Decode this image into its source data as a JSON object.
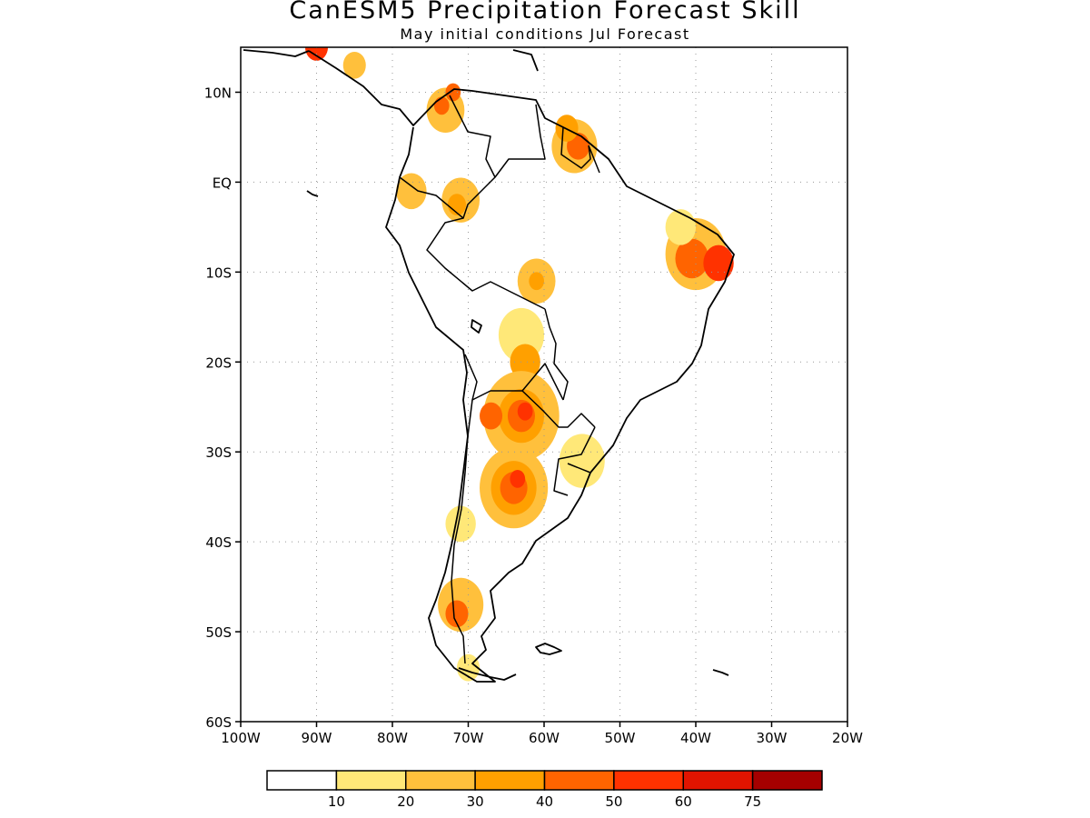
{
  "title": "CanESM5 Precipitation Forecast Skill",
  "subtitle": "May initial conditions  Jul Forecast",
  "map": {
    "lon_range": [
      -100,
      -20
    ],
    "lat_range": [
      -60,
      15
    ],
    "lat_ticks": [
      {
        "value": 10,
        "label": "10N"
      },
      {
        "value": 0,
        "label": "EQ"
      },
      {
        "value": -10,
        "label": "10S"
      },
      {
        "value": -20,
        "label": "20S"
      },
      {
        "value": -30,
        "label": "30S"
      },
      {
        "value": -40,
        "label": "40S"
      },
      {
        "value": -50,
        "label": "50S"
      },
      {
        "value": -60,
        "label": "60S"
      }
    ],
    "lon_ticks": [
      {
        "value": -100,
        "label": "100W"
      },
      {
        "value": -90,
        "label": "90W"
      },
      {
        "value": -80,
        "label": "80W"
      },
      {
        "value": -70,
        "label": "70W"
      },
      {
        "value": -60,
        "label": "60W"
      },
      {
        "value": -50,
        "label": "50W"
      },
      {
        "value": -40,
        "label": "40W"
      },
      {
        "value": -30,
        "label": "30W"
      },
      {
        "value": -20,
        "label": "20W"
      }
    ],
    "grid": "dotted"
  },
  "colorbar": {
    "colors": [
      "#ffffff",
      "#ffe878",
      "#ffc03c",
      "#ffa000",
      "#ff6400",
      "#ff3200",
      "#e11400",
      "#a50000"
    ],
    "labels": [
      "10",
      "20",
      "30",
      "40",
      "50",
      "60",
      "75"
    ]
  },
  "skill_regions": [
    {
      "lon": -73,
      "lat": 8,
      "r": 2.5,
      "level": 2
    },
    {
      "lon": -73.5,
      "lat": 8.5,
      "r": 1,
      "level": 4
    },
    {
      "lon": -72,
      "lat": 10,
      "r": 1,
      "level": 4
    },
    {
      "lon": -90,
      "lat": 15,
      "r": 1.5,
      "level": 5
    },
    {
      "lon": -85,
      "lat": 13,
      "r": 1.5,
      "level": 2
    },
    {
      "lon": -56,
      "lat": 4,
      "r": 3,
      "level": 2
    },
    {
      "lon": -55.5,
      "lat": 4,
      "r": 1.5,
      "level": 4
    },
    {
      "lon": -57,
      "lat": 6,
      "r": 1.5,
      "level": 3
    },
    {
      "lon": -77.5,
      "lat": -1,
      "r": 2,
      "level": 2
    },
    {
      "lon": -71,
      "lat": -2,
      "r": 2.5,
      "level": 2
    },
    {
      "lon": -71.5,
      "lat": -2.5,
      "r": 1.2,
      "level": 3
    },
    {
      "lon": -40,
      "lat": -8,
      "r": 4,
      "level": 2
    },
    {
      "lon": -40.5,
      "lat": -8.5,
      "r": 2.2,
      "level": 4
    },
    {
      "lon": -37,
      "lat": -9,
      "r": 2,
      "level": 5
    },
    {
      "lon": -42,
      "lat": -5,
      "r": 2,
      "level": 1
    },
    {
      "lon": -61,
      "lat": -11,
      "r": 2.5,
      "level": 2
    },
    {
      "lon": -61,
      "lat": -11,
      "r": 1,
      "level": 3
    },
    {
      "lon": -63,
      "lat": -17,
      "r": 3,
      "level": 1
    },
    {
      "lon": -62.5,
      "lat": -20,
      "r": 2,
      "level": 3
    },
    {
      "lon": -63,
      "lat": -26,
      "r": 5,
      "level": 2
    },
    {
      "lon": -63,
      "lat": -26,
      "r": 3,
      "level": 3
    },
    {
      "lon": -63,
      "lat": -26,
      "r": 1.8,
      "level": 4
    },
    {
      "lon": -62.5,
      "lat": -25.5,
      "r": 1,
      "level": 5
    },
    {
      "lon": -67,
      "lat": -26,
      "r": 1.5,
      "level": 4
    },
    {
      "lon": -64,
      "lat": -34,
      "r": 4.5,
      "level": 2
    },
    {
      "lon": -64,
      "lat": -34,
      "r": 3,
      "level": 3
    },
    {
      "lon": -64,
      "lat": -34,
      "r": 1.8,
      "level": 4
    },
    {
      "lon": -63.5,
      "lat": -33,
      "r": 1,
      "level": 5
    },
    {
      "lon": -55,
      "lat": -31,
      "r": 3,
      "level": 1
    },
    {
      "lon": -71,
      "lat": -38,
      "r": 2,
      "level": 1
    },
    {
      "lon": -71,
      "lat": -47,
      "r": 3,
      "level": 2
    },
    {
      "lon": -71.5,
      "lat": -48,
      "r": 1.5,
      "level": 4
    },
    {
      "lon": -70,
      "lat": -54,
      "r": 1.5,
      "level": 1
    }
  ]
}
